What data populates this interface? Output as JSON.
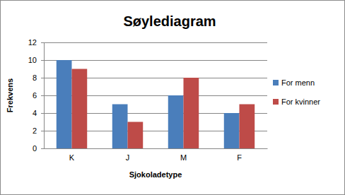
{
  "chart_data": {
    "type": "bar",
    "title": "Søylediagram",
    "xlabel": "Sjokoladetype",
    "ylabel": "Frekvens",
    "categories": [
      "K",
      "J",
      "M",
      "F"
    ],
    "series": [
      {
        "name": "For menn",
        "color": "#4a7ebb",
        "values": [
          10,
          5,
          6,
          4
        ]
      },
      {
        "name": "For kvinner",
        "color": "#be4b48",
        "values": [
          9,
          3,
          8,
          5
        ]
      }
    ],
    "ylim": [
      0,
      12
    ],
    "yticks": [
      0,
      2,
      4,
      6,
      8,
      10,
      12
    ],
    "grid": true,
    "legend": "right"
  }
}
